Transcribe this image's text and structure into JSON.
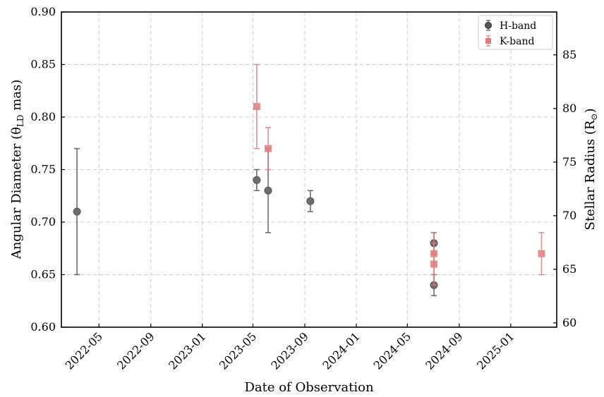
{
  "chart_data": {
    "type": "scatter",
    "xlabel": "Date of Observation",
    "ylabel": "Angular Diameter (θ",
    "ylabel_sub": "LD",
    "ylabel_unit": " mas)",
    "y2label": "Stellar Radius (R",
    "y2label_sub": "⊙",
    "y2label_end": ")",
    "x_ticks": [
      "2022-05",
      "2022-09",
      "2023-01",
      "2023-05",
      "2023-09",
      "2024-01",
      "2024-05",
      "2024-09",
      "2025-01"
    ],
    "xlim": [
      "2022-02-01",
      "2025-04-20"
    ],
    "y_ticks": [
      "0.60",
      "0.65",
      "0.70",
      "0.75",
      "0.80",
      "0.85",
      "0.90"
    ],
    "ylim": [
      0.6,
      0.9
    ],
    "y2_ticks": [
      "60",
      "65",
      "70",
      "75",
      "80",
      "85"
    ],
    "y2lim": [
      59.6,
      89.0
    ],
    "grid": true,
    "legend_position": "top-right",
    "series": [
      {
        "name": "H-band",
        "marker": "circle",
        "color": "#555555",
        "points": [
          {
            "x": "2022-03-10",
            "y": 0.71,
            "err": 0.06
          },
          {
            "x": "2023-05-10",
            "y": 0.74,
            "err": 0.01
          },
          {
            "x": "2023-06-06",
            "y": 0.73,
            "err": 0.04
          },
          {
            "x": "2023-09-14",
            "y": 0.72,
            "err": 0.01
          },
          {
            "x": "2024-07-03",
            "y": 0.68,
            "err": 0.01
          },
          {
            "x": "2024-07-03",
            "y": 0.64,
            "err": 0.01
          }
        ]
      },
      {
        "name": "K-band",
        "marker": "square",
        "color": "#e07b7b",
        "points": [
          {
            "x": "2023-05-10",
            "y": 0.81,
            "err": 0.04
          },
          {
            "x": "2023-06-06",
            "y": 0.77,
            "err": 0.02
          },
          {
            "x": "2024-07-03",
            "y": 0.67,
            "err": 0.02
          },
          {
            "x": "2024-07-03",
            "y": 0.66,
            "err": 0.02
          },
          {
            "x": "2025-03-15",
            "y": 0.67,
            "err": 0.02
          }
        ]
      }
    ]
  }
}
